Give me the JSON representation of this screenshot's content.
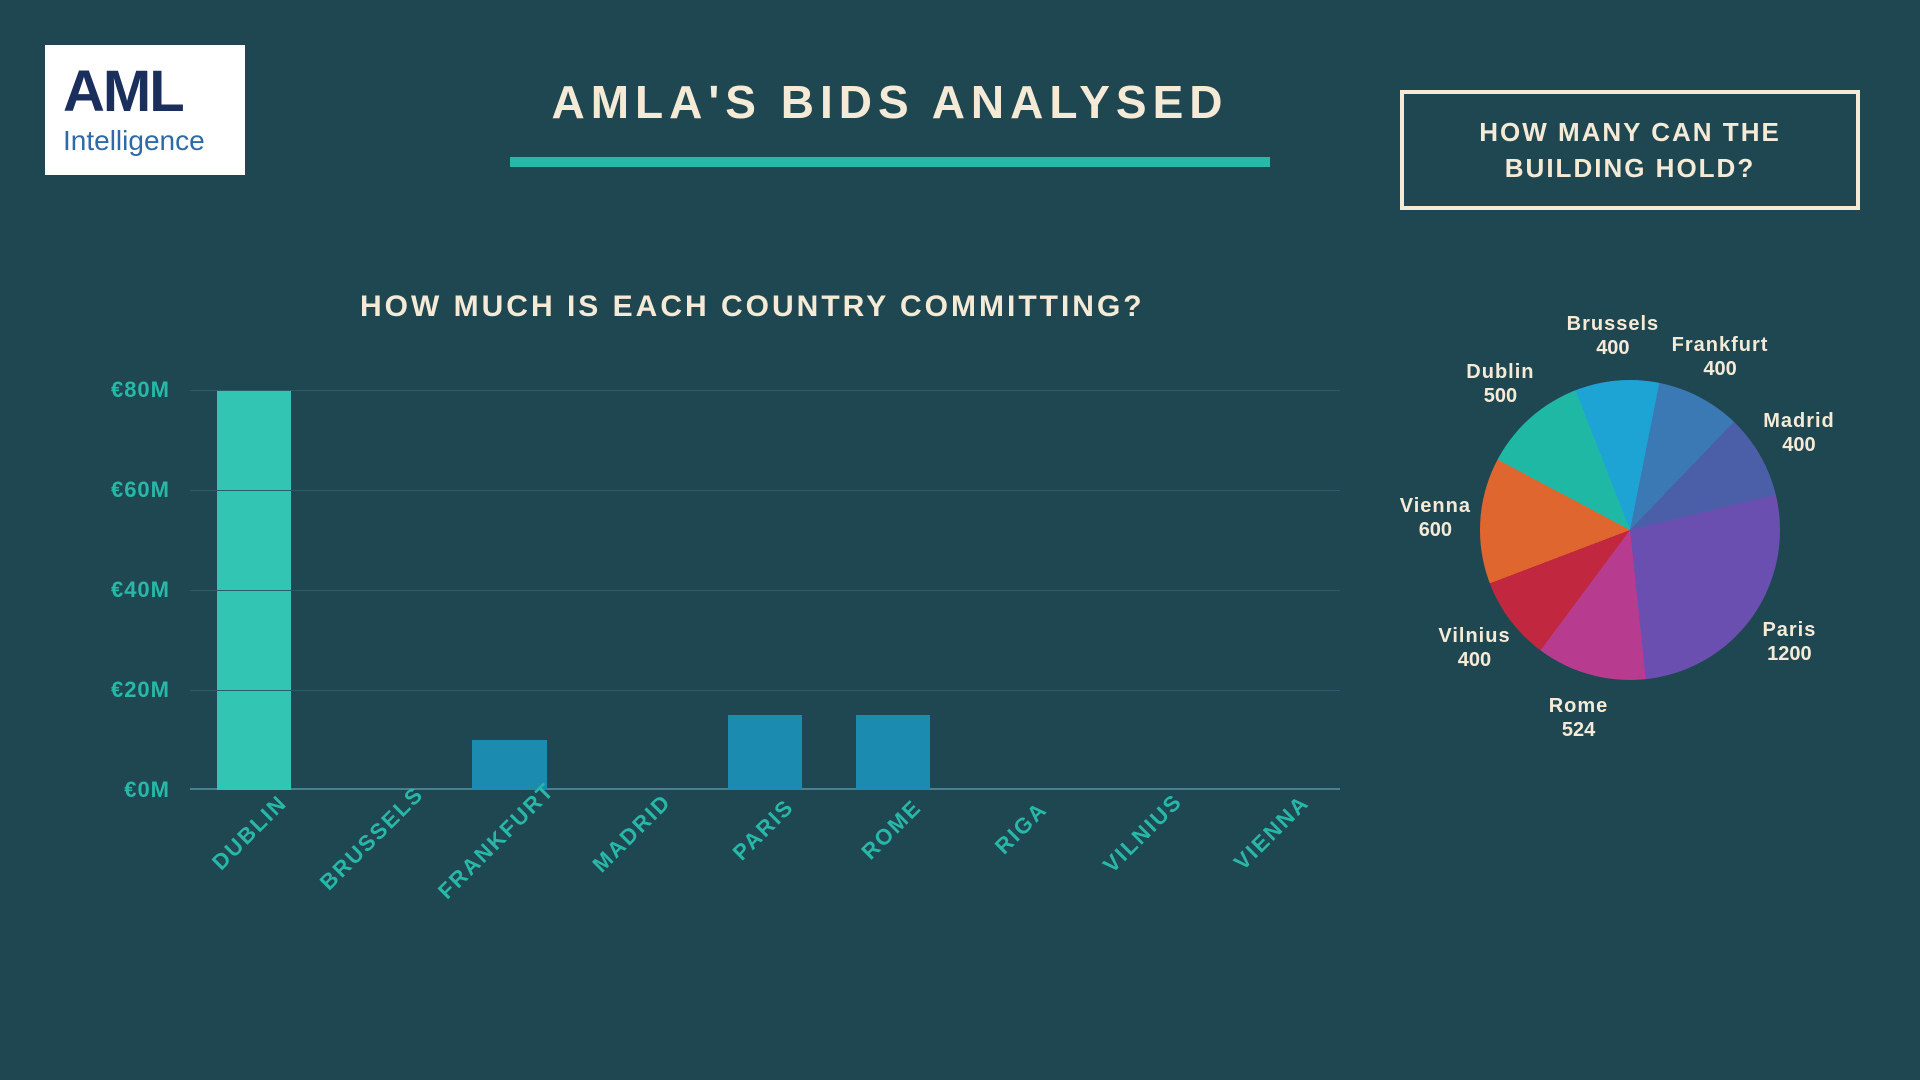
{
  "logo": {
    "line1": "AML",
    "line2": "Intelligence"
  },
  "title": "AMLA'S BIDS ANALYSED",
  "bar_chart": {
    "type": "bar",
    "title": "HOW MUCH IS EACH COUNTRY COMMITTING?",
    "ylabel_prefix": "€",
    "ylabel_suffix": "M",
    "ylim": [
      0,
      80
    ],
    "ytick_step": 20,
    "yticks": [
      "€0M",
      "€20M",
      "€40M",
      "€60M",
      "€80M"
    ],
    "categories": [
      "DUBLIN",
      "BRUSSELS",
      "FRANKFURT",
      "MADRID",
      "PARIS",
      "ROME",
      "RIGA",
      "VILNIUS",
      "VIENNA"
    ],
    "values": [
      80,
      0,
      10,
      0,
      15,
      15,
      0,
      0,
      0
    ],
    "bar_colors": [
      "#32c5b4",
      "#1b8bb0",
      "#1b8bb0",
      "#1b8bb0",
      "#1b8bb0",
      "#1b8bb0",
      "#1b8bb0",
      "#1b8bb0",
      "#1b8bb0"
    ],
    "axis_label_color": "#29b8a8",
    "grid_color": "#2a5c6a",
    "background_color": "#1e4752",
    "title_color": "#f5ead6",
    "title_fontsize": 30,
    "bar_width": 0.58
  },
  "pie_chart": {
    "type": "pie",
    "title": "HOW MANY CAN THE BUILDING HOLD?",
    "slices": [
      {
        "city": "Dublin",
        "value": 500,
        "color": "#1eb8a5"
      },
      {
        "city": "Brussels",
        "value": 400,
        "color": "#1ea4d4"
      },
      {
        "city": "Frankfurt",
        "value": 400,
        "color": "#3a79b3"
      },
      {
        "city": "Madrid",
        "value": 400,
        "color": "#4b5fa8"
      },
      {
        "city": "Paris",
        "value": 1200,
        "color": "#6b4fb0"
      },
      {
        "city": "Rome",
        "value": 524,
        "color": "#b73c8f"
      },
      {
        "city": "Vilnius",
        "value": 400,
        "color": "#c1273e"
      },
      {
        "city": "Vienna",
        "value": 600,
        "color": "#e0662f"
      }
    ],
    "start_angle_deg": -62,
    "label_color": "#f5ead6",
    "label_fontsize": 20,
    "background_color": "#1e4752"
  },
  "colors": {
    "page_bg": "#1e4752",
    "accent": "#29b8a8",
    "text": "#f5ead6",
    "logo_bg": "#ffffff",
    "logo_primary": "#1b2f5c",
    "logo_secondary": "#2f6aa8",
    "title_underline": "#29b8a8"
  }
}
